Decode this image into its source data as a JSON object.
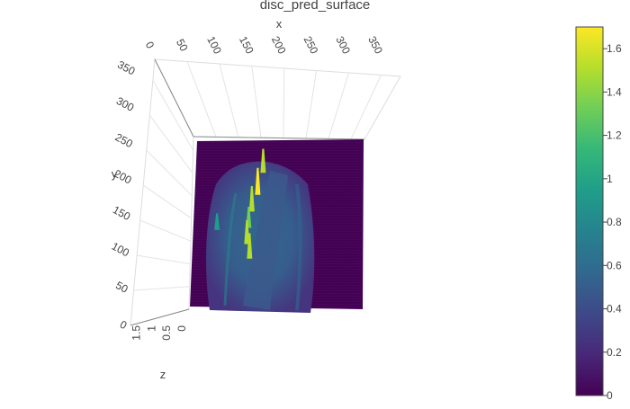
{
  "chart_data": {
    "type": "surface",
    "title": "disc_pred_surface",
    "colorscale": "Viridis",
    "colorscale_stops": [
      "#440154",
      "#482878",
      "#3e4989",
      "#31688e",
      "#26828e",
      "#1f9e89",
      "#35b779",
      "#6ece58",
      "#b5de2b",
      "#fde725"
    ],
    "axes": {
      "x": {
        "title": "x",
        "range": [
          0,
          380
        ],
        "ticks": [
          "0",
          "50",
          "100",
          "150",
          "200",
          "250",
          "300",
          "350"
        ]
      },
      "y": {
        "title": "y",
        "range": [
          0,
          380
        ],
        "ticks": [
          "0",
          "50",
          "100",
          "150",
          "200",
          "250",
          "300",
          "350"
        ]
      },
      "z": {
        "title": "z",
        "range": [
          0,
          1.7
        ],
        "ticks": [
          "0",
          "0.5",
          "1",
          "1.5"
        ]
      }
    },
    "colorbar": {
      "range": [
        0,
        1.7
      ],
      "ticks": [
        "0",
        "0.2",
        "0.4",
        "0.6",
        "0.8",
        "1",
        "1.2",
        "1.4",
        "1.6"
      ]
    },
    "peaks": [
      {
        "x": 160,
        "y": 310,
        "z": 1.5
      },
      {
        "x": 148,
        "y": 260,
        "z": 1.7
      },
      {
        "x": 135,
        "y": 222,
        "z": 1.6
      },
      {
        "x": 128,
        "y": 185,
        "z": 1.3
      },
      {
        "x": 124,
        "y": 148,
        "z": 1.5
      },
      {
        "x": 130,
        "y": 115,
        "z": 1.6
      },
      {
        "x": 58,
        "y": 180,
        "z": 1.0
      }
    ]
  }
}
